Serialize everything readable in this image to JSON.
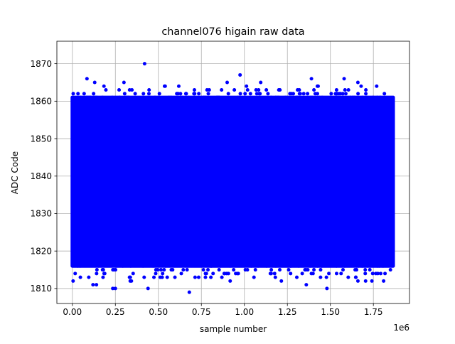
{
  "chart_data": {
    "type": "scatter",
    "title": "channel076 higain raw data",
    "xlabel": "sample number",
    "ylabel": "ADC Code",
    "x_offset_label": "1e6",
    "xlim": [
      -90000,
      1960000
    ],
    "ylim": [
      1806,
      1876
    ],
    "xticks": [
      0,
      250000,
      500000,
      750000,
      1000000,
      1250000,
      1500000,
      1750000
    ],
    "xtick_labels": [
      "0.00",
      "0.25",
      "0.50",
      "0.75",
      "1.00",
      "1.25",
      "1.50",
      "1.75"
    ],
    "yticks": [
      1810,
      1820,
      1830,
      1840,
      1850,
      1860,
      1870
    ],
    "ytick_labels": [
      "1810",
      "1820",
      "1830",
      "1840",
      "1850",
      "1860",
      "1870"
    ],
    "grid": true,
    "marker_color": "#0000ff",
    "series": [
      {
        "x_range": [
          0,
          1865000
        ],
        "dense_band": [
          1816,
          1861
        ],
        "outliers": [
          {
            "x": 420000,
            "y": 1870
          },
          {
            "x": 975000,
            "y": 1867
          },
          {
            "x": 85000,
            "y": 1866
          },
          {
            "x": 1390000,
            "y": 1866
          },
          {
            "x": 1580000,
            "y": 1866
          },
          {
            "x": 130000,
            "y": 1865
          },
          {
            "x": 300000,
            "y": 1865
          },
          {
            "x": 900000,
            "y": 1865
          },
          {
            "x": 1095000,
            "y": 1865
          },
          {
            "x": 1660000,
            "y": 1865
          },
          {
            "x": 680000,
            "y": 1809
          },
          {
            "x": 235000,
            "y": 1810
          },
          {
            "x": 250000,
            "y": 1810
          },
          {
            "x": 440000,
            "y": 1810
          },
          {
            "x": 1480000,
            "y": 1810
          },
          {
            "x": 120000,
            "y": 1811
          },
          {
            "x": 140000,
            "y": 1811
          },
          {
            "x": 1360000,
            "y": 1811
          }
        ]
      }
    ]
  }
}
